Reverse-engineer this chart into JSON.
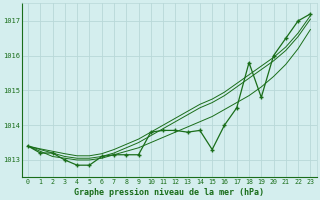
{
  "title": "Graphe pression niveau de la mer (hPa)",
  "background_color": "#d4eeee",
  "grid_color": "#b8d8d8",
  "line_color": "#1a6e1a",
  "hours": [
    0,
    1,
    2,
    3,
    4,
    5,
    6,
    7,
    8,
    9,
    10,
    11,
    12,
    13,
    14,
    15,
    16,
    17,
    18,
    19,
    20,
    21,
    22,
    23
  ],
  "main_series": [
    1013.4,
    1013.2,
    1013.2,
    1013.0,
    1012.85,
    1012.85,
    1013.1,
    1013.15,
    1013.15,
    1013.15,
    1013.8,
    1013.85,
    1013.85,
    1013.8,
    1013.85,
    1013.3,
    1014.0,
    1014.5,
    1015.8,
    1014.8,
    1016.0,
    1016.5,
    1017.0,
    1017.2
  ],
  "line2": [
    1013.4,
    1013.25,
    1013.1,
    1013.05,
    1013.0,
    1013.0,
    1013.05,
    1013.15,
    1013.25,
    1013.35,
    1013.5,
    1013.65,
    1013.8,
    1013.95,
    1014.1,
    1014.25,
    1014.45,
    1014.65,
    1014.85,
    1015.1,
    1015.4,
    1015.75,
    1016.2,
    1016.75
  ],
  "line3": [
    1013.4,
    1013.3,
    1013.2,
    1013.1,
    1013.05,
    1013.05,
    1013.1,
    1013.2,
    1013.35,
    1013.5,
    1013.7,
    1013.9,
    1014.1,
    1014.3,
    1014.5,
    1014.65,
    1014.85,
    1015.1,
    1015.35,
    1015.6,
    1015.85,
    1016.15,
    1016.55,
    1017.05
  ],
  "line4": [
    1013.4,
    1013.32,
    1013.25,
    1013.18,
    1013.12,
    1013.12,
    1013.18,
    1013.3,
    1013.45,
    1013.6,
    1013.8,
    1014.0,
    1014.2,
    1014.4,
    1014.6,
    1014.75,
    1014.95,
    1015.2,
    1015.45,
    1015.7,
    1015.95,
    1016.25,
    1016.65,
    1017.15
  ],
  "ylim": [
    1012.5,
    1017.5
  ],
  "yticks": [
    1013,
    1014,
    1015,
    1016,
    1017
  ],
  "xlim": [
    -0.5,
    23.5
  ]
}
